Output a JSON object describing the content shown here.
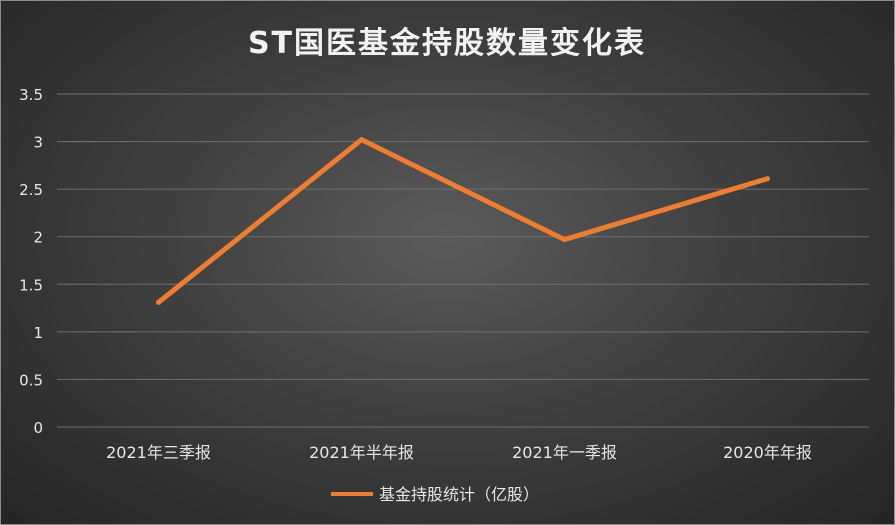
{
  "chart_data": {
    "type": "line",
    "title": "ST国医基金持股数量变化表",
    "categories": [
      "2021年三季报",
      "2021年半年报",
      "2021年一季报",
      "2020年年报"
    ],
    "series": [
      {
        "name": "基金持股统计（亿股）",
        "values": [
          1.31,
          3.02,
          1.97,
          2.61
        ],
        "color": "#ED7D31"
      }
    ],
    "ylim": [
      0,
      3.5
    ],
    "yticks": [
      "0",
      "0.5",
      "1",
      "1.5",
      "2",
      "2.5",
      "3",
      "3.5"
    ],
    "grid": true,
    "legend_position": "bottom"
  }
}
